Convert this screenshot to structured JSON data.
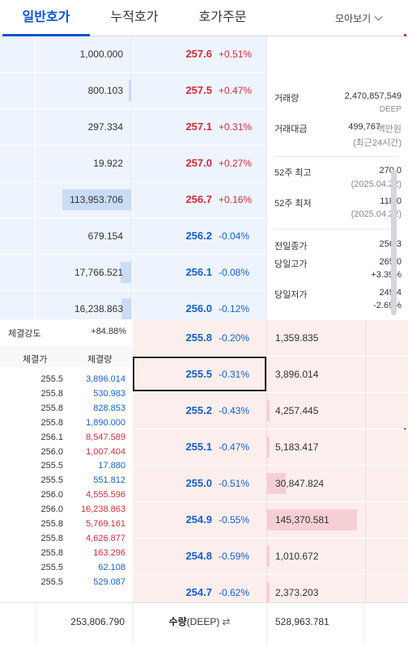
{
  "tabs": [
    {
      "label": "일반호가",
      "active": true
    },
    {
      "label": "누적호가",
      "active": false
    },
    {
      "label": "호가주문",
      "active": false
    }
  ],
  "more_label": "모아보기",
  "asks": [
    {
      "qty": "1,000.000",
      "price": "257.6",
      "change": "+0.51%",
      "bar_fraction": 0.0
    },
    {
      "qty": "800.103",
      "price": "257.5",
      "change": "+0.47%",
      "bar_fraction": 0.01
    },
    {
      "qty": "297.334",
      "price": "257.1",
      "change": "+0.31%",
      "bar_fraction": 0.0
    },
    {
      "qty": "19.922",
      "price": "257.0",
      "change": "+0.27%",
      "bar_fraction": 0.0
    },
    {
      "qty": "113,953.706",
      "price": "256.7",
      "change": "+0.16%",
      "bar_fraction": 0.72
    },
    {
      "qty": "679.154",
      "price": "256.2",
      "change": "-0.04%",
      "bar_fraction": 0.0
    },
    {
      "qty": "17,766.521",
      "price": "256.1",
      "change": "-0.08%",
      "bar_fraction": 0.11
    },
    {
      "qty": "16,238.863",
      "price": "256.0",
      "change": "-0.12%",
      "bar_fraction": 0.1
    }
  ],
  "bids": [
    {
      "qty": "1,359.835",
      "price": "255.8",
      "change": "-0.20%",
      "bar_fraction": 0.0
    },
    {
      "qty": "3,896.014",
      "price": "255.5",
      "change": "-0.31%",
      "bar_fraction": 0.0
    },
    {
      "qty": "4,257.445",
      "price": "255.2",
      "change": "-0.43%",
      "bar_fraction": 0.03
    },
    {
      "qty": "5,183.417",
      "price": "255.1",
      "change": "-0.47%",
      "bar_fraction": 0.03
    },
    {
      "qty": "30,847.824",
      "price": "255.0",
      "change": "-0.51%",
      "bar_fraction": 0.21
    },
    {
      "qty": "145,370.581",
      "price": "254.9",
      "change": "-0.55%",
      "bar_fraction": 1.0
    },
    {
      "qty": "1,010.672",
      "price": "254.8",
      "change": "-0.59%",
      "bar_fraction": 0.01
    },
    {
      "qty": "2,373.203",
      "price": "254.7",
      "change": "-0.62%",
      "bar_fraction": 0.02
    }
  ],
  "selected_bid_index": 1,
  "info": {
    "volume_label": "거래량",
    "volume_value": "2,470,857,549",
    "volume_unit": "DEEP",
    "amount_label": "거래대금",
    "amount_value": "499,767",
    "amount_unit": "백만원",
    "amount_note": "(최근24시간)",
    "high52_label": "52주 최고",
    "high52_value": "270.0",
    "high52_date": "(2025.04.22)",
    "low52_label": "52주 최저",
    "low52_value": "118.0",
    "low52_date": "(2025.04.22)",
    "prev_close_label": "전일종가",
    "prev_close_value": "256.3",
    "day_high_label": "당일고가",
    "day_high_value": "265.0",
    "day_high_change": "+3.39%",
    "day_low_label": "당일저가",
    "day_low_value": "249.4",
    "day_low_change": "-2.69%"
  },
  "trades": {
    "strength_label": "체결강도",
    "strength_value": "+84.88%",
    "header_price": "체결가",
    "header_qty": "체결량",
    "rows": [
      {
        "price": "255.5",
        "qty": "3,896.014",
        "side": "sell"
      },
      {
        "price": "255.8",
        "qty": "530.983",
        "side": "sell"
      },
      {
        "price": "255.8",
        "qty": "828.853",
        "side": "sell"
      },
      {
        "price": "255.8",
        "qty": "1,890.000",
        "side": "sell"
      },
      {
        "price": "256.1",
        "qty": "8,547.589",
        "side": "buy"
      },
      {
        "price": "256.0",
        "qty": "1,007.404",
        "side": "buy"
      },
      {
        "price": "255.5",
        "qty": "17.880",
        "side": "sell"
      },
      {
        "price": "255.5",
        "qty": "551.812",
        "side": "sell"
      },
      {
        "price": "256.0",
        "qty": "4,555.596",
        "side": "buy"
      },
      {
        "price": "256.0",
        "qty": "16,238.863",
        "side": "buy"
      },
      {
        "price": "255.8",
        "qty": "5,769.161",
        "side": "buy"
      },
      {
        "price": "255.8",
        "qty": "4,626.877",
        "side": "buy"
      },
      {
        "price": "255.8",
        "qty": "163.296",
        "side": "buy"
      },
      {
        "price": "255.5",
        "qty": "62.108",
        "side": "sell"
      },
      {
        "price": "255.5",
        "qty": "529.087",
        "side": "sell"
      }
    ]
  },
  "footer": {
    "total_ask": "253,806.790",
    "label": "수량",
    "unit": "(DEEP)",
    "swap_icon": "⇄",
    "total_bid": "528,963.781"
  },
  "colors": {
    "up": "#d22b3a",
    "down": "#1560c9",
    "accent": "#0a55c8"
  }
}
